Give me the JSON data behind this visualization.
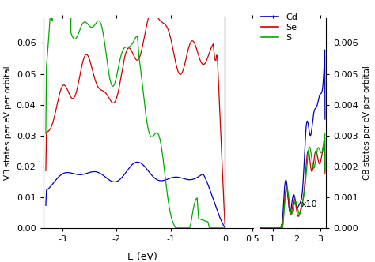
{
  "xlabel": "E (eV)",
  "ylabel_left": "VB states per eV per orbital",
  "ylabel_right": "CB states per eV per orbital",
  "legend_labels": [
    "Cd",
    "Se",
    "S"
  ],
  "line_colors": [
    "#0000bb",
    "#cc0000",
    "#00aa00"
  ],
  "vb_ylim": [
    0,
    0.068
  ],
  "cb_ylim": [
    0,
    0.0068
  ],
  "annotation": "x10",
  "figsize": [
    4.74,
    3.32
  ],
  "dpi": 100
}
